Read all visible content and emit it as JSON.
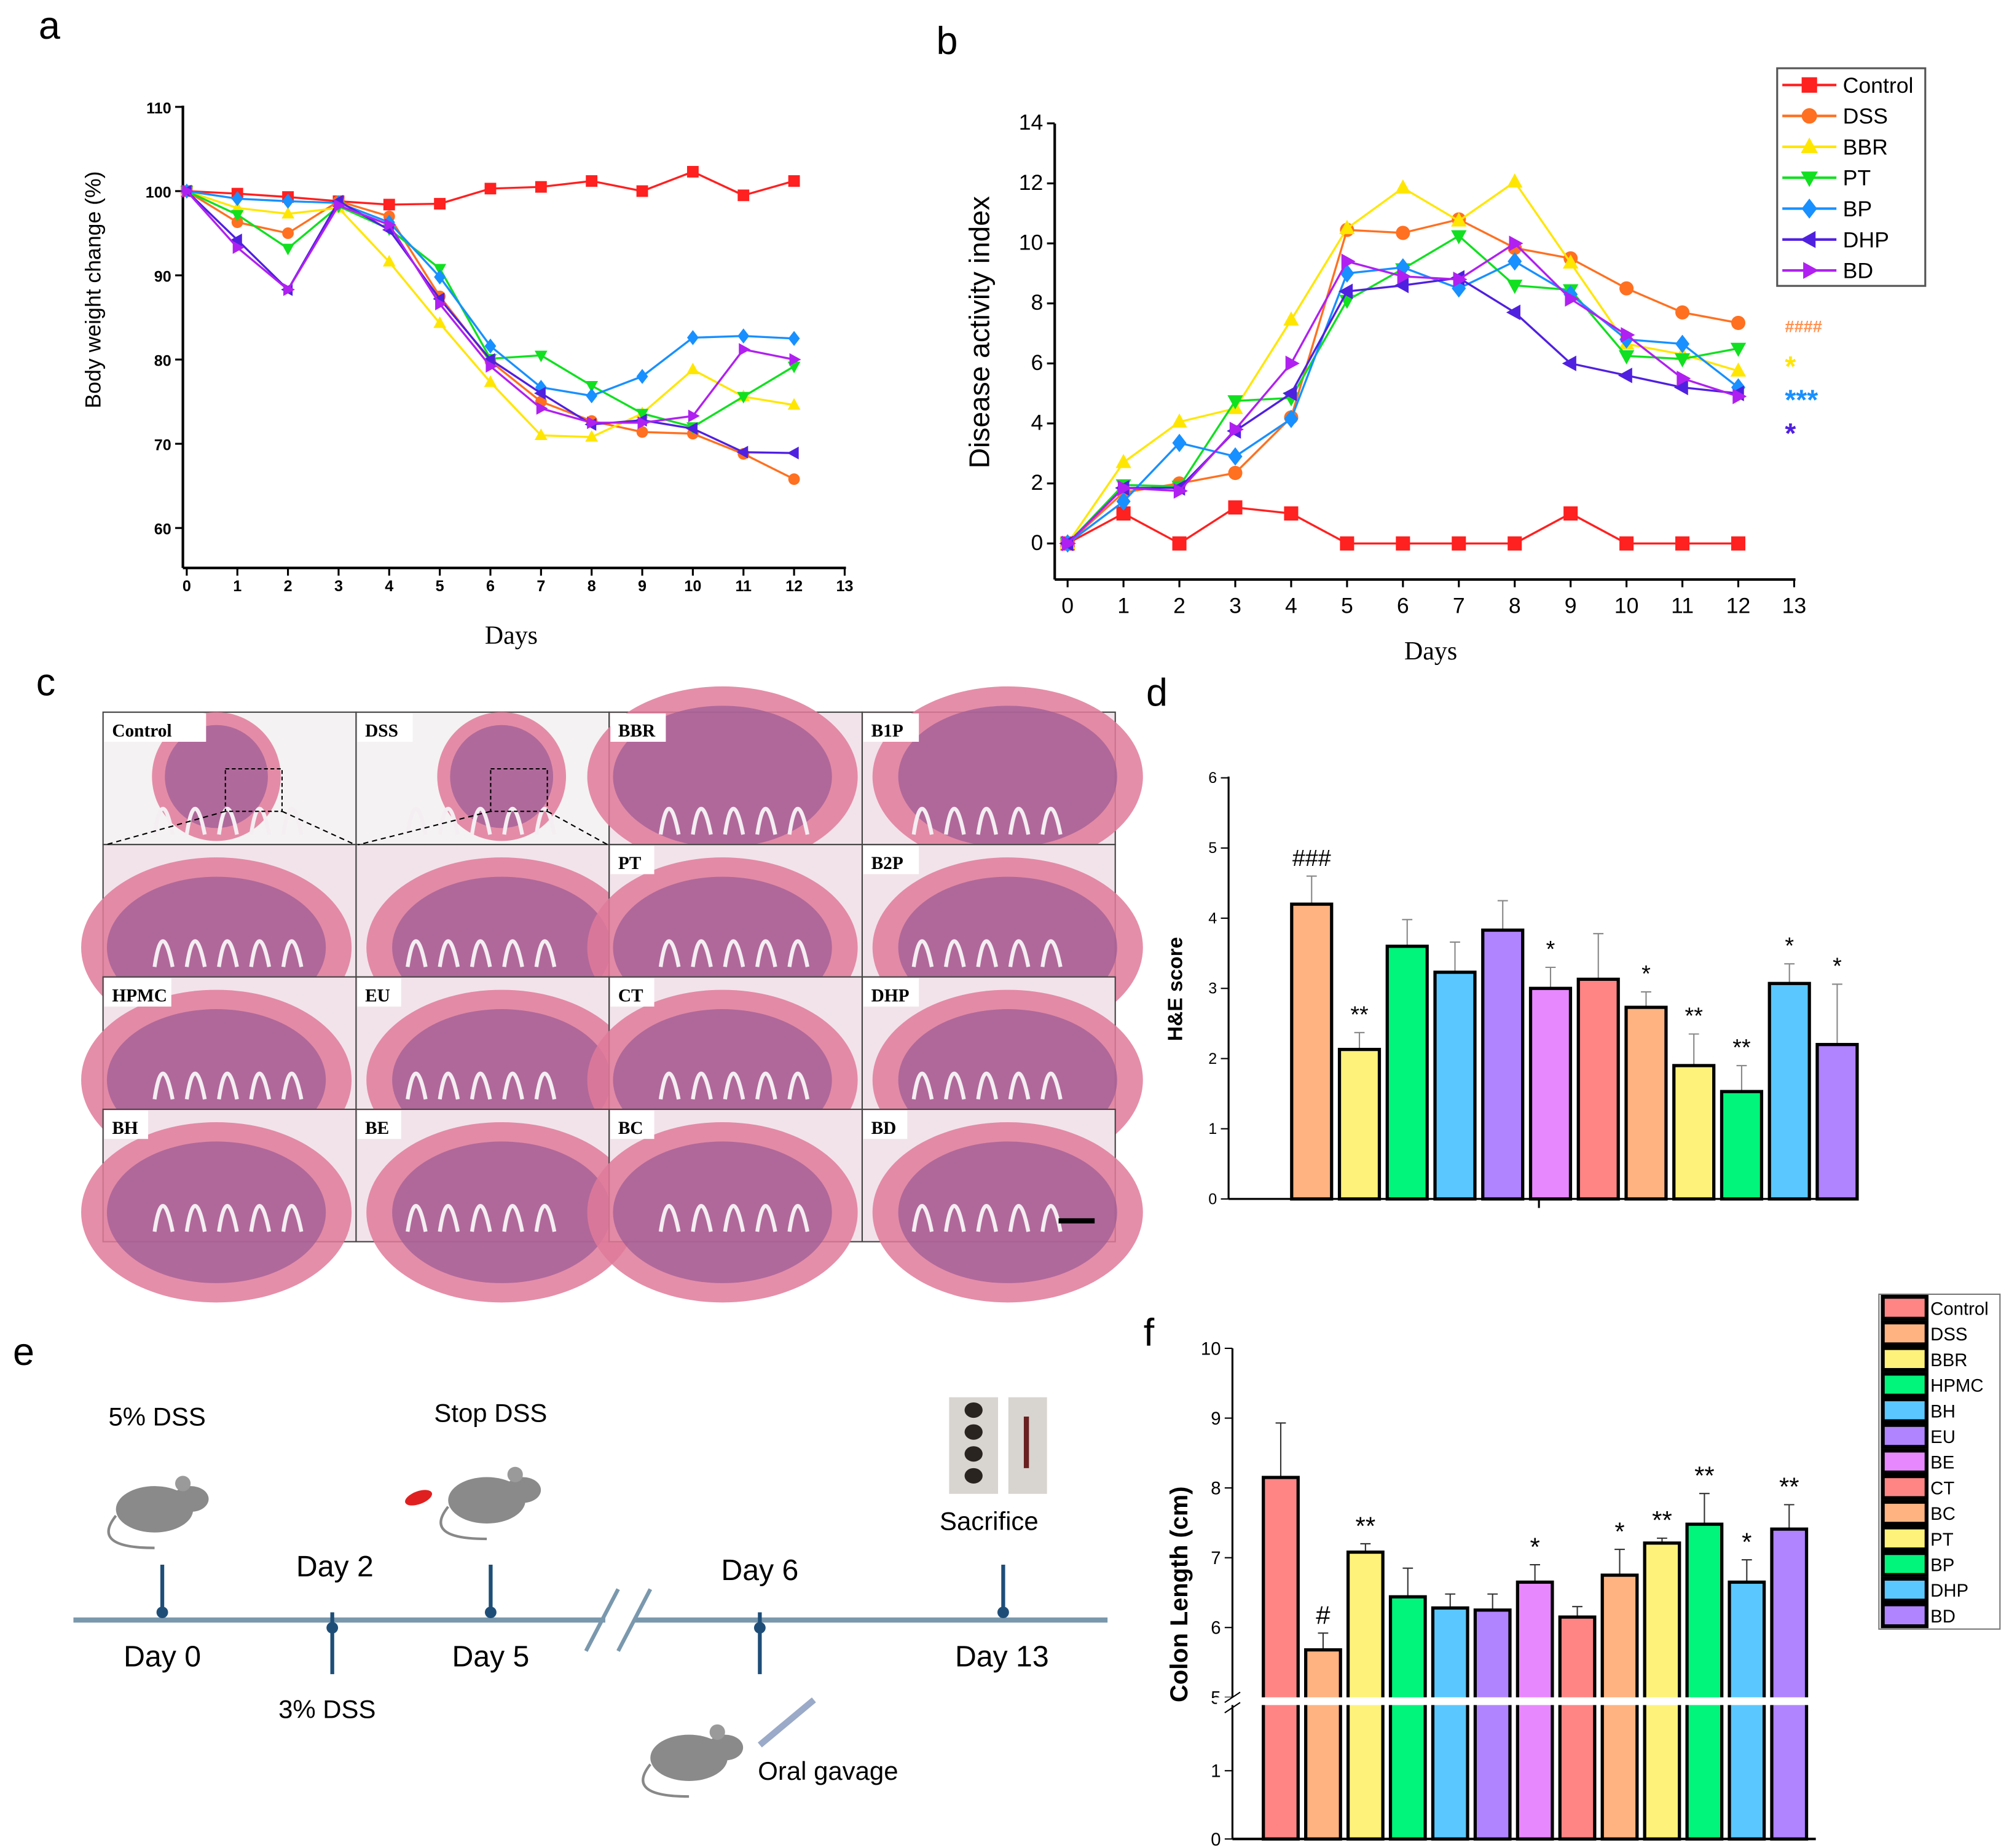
{
  "panel_labels": [
    "a",
    "b",
    "c",
    "d",
    "e",
    "f"
  ],
  "chart_data": [
    {
      "id": "a",
      "type": "line",
      "xlabel": "Days",
      "ylabel": "Body weight change  (%)",
      "xlim": [
        0,
        13
      ],
      "ylim": [
        55,
        110
      ],
      "xticks": [
        "0",
        "1",
        "2",
        "3",
        "4",
        "5",
        "6",
        "7",
        "8",
        "9",
        "10",
        "11",
        "12",
        "13"
      ],
      "yticks": [
        "60",
        "70",
        "80",
        "90",
        "100",
        "110"
      ],
      "x": [
        0,
        1,
        2,
        3,
        4,
        5,
        6,
        7,
        8,
        9,
        10,
        11,
        12
      ],
      "series": [
        {
          "name": "Control",
          "color": "#ff2020",
          "marker": "square",
          "values": [
            100,
            99.7,
            99.3,
            98.8,
            98.4,
            98.5,
            100.3,
            100.5,
            101.2,
            100,
            102.3,
            99.5,
            101.2
          ]
        },
        {
          "name": "DSS",
          "color": "#ff7020",
          "marker": "circle",
          "values": [
            100,
            96.3,
            95,
            98.8,
            97,
            87.5,
            79.8,
            75,
            72.7,
            71.4,
            71.2,
            68.8,
            65.8
          ]
        },
        {
          "name": "BBR",
          "color": "#ffe600",
          "marker": "triangle-up",
          "values": [
            100,
            98,
            97.3,
            98,
            91.6,
            84.3,
            77.3,
            71,
            70.8,
            73.6,
            78.8,
            75.6,
            74.6
          ]
        },
        {
          "name": "PT",
          "color": "#10e020",
          "marker": "triangle-down",
          "values": [
            100,
            97.2,
            93.2,
            98.2,
            95.5,
            90.8,
            80.1,
            80.5,
            76.9,
            73.6,
            72,
            75.6,
            79.2
          ]
        },
        {
          "name": "BP",
          "color": "#1890ff",
          "marker": "diamond",
          "values": [
            100,
            99.1,
            98.8,
            98.6,
            96.3,
            89.8,
            81.6,
            76.7,
            75.7,
            78,
            82.6,
            82.8,
            82.5
          ]
        },
        {
          "name": "DHP",
          "color": "#5020e0",
          "marker": "triangle-left",
          "values": [
            100,
            94.2,
            88.3,
            98.8,
            95.4,
            87.2,
            80,
            76,
            72.3,
            72.8,
            71.8,
            69,
            68.9
          ]
        },
        {
          "name": "BD",
          "color": "#b020f0",
          "marker": "triangle-right",
          "values": [
            100,
            93.3,
            88.3,
            98.3,
            96,
            86.6,
            79.2,
            74.2,
            72.5,
            72.5,
            73.3,
            81.2,
            80
          ]
        }
      ]
    },
    {
      "id": "b",
      "type": "line",
      "xlabel": "Days",
      "ylabel": "Disease activity index",
      "xlim": [
        0,
        13
      ],
      "ylim": [
        -1.2,
        14
      ],
      "xticks": [
        "0",
        "1",
        "2",
        "3",
        "4",
        "5",
        "6",
        "7",
        "8",
        "9",
        "10",
        "11",
        "12",
        "13"
      ],
      "yticks": [
        "0",
        "2",
        "4",
        "6",
        "8",
        "10",
        "12",
        "14"
      ],
      "legend": "top-right",
      "x": [
        0,
        1,
        2,
        3,
        4,
        5,
        6,
        7,
        8,
        9,
        10,
        11,
        12
      ],
      "series": [
        {
          "name": "Control",
          "color": "#ff2020",
          "marker": "square",
          "values": [
            0,
            1,
            0,
            1.2,
            1,
            0,
            0,
            0,
            0,
            1,
            0,
            0,
            0
          ]
        },
        {
          "name": "DSS",
          "color": "#ff7020",
          "marker": "circle",
          "values": [
            0,
            1.7,
            2,
            2.35,
            4.2,
            10.45,
            10.35,
            10.8,
            9.85,
            9.5,
            8.5,
            7.7,
            7.35
          ]
        },
        {
          "name": "BBR",
          "color": "#ffe600",
          "marker": "triangle-up",
          "values": [
            0,
            2.7,
            4.05,
            4.5,
            7.45,
            10.5,
            11.85,
            10.75,
            12.05,
            9.35,
            6.65,
            6.3,
            5.75
          ]
        },
        {
          "name": "PT",
          "color": "#10e020",
          "marker": "triangle-down",
          "values": [
            0,
            1.95,
            1.9,
            4.75,
            4.85,
            8.1,
            9.15,
            10.25,
            8.6,
            8.45,
            6.25,
            6.15,
            6.5
          ]
        },
        {
          "name": "BP",
          "color": "#1890ff",
          "marker": "diamond",
          "values": [
            0,
            1.4,
            3.35,
            2.9,
            4.15,
            9,
            9.2,
            8.5,
            9.4,
            8.3,
            6.8,
            6.65,
            5.2
          ]
        },
        {
          "name": "DHP",
          "color": "#5020e0",
          "marker": "triangle-left",
          "values": [
            0,
            1.85,
            1.85,
            3.75,
            5,
            8.4,
            8.6,
            8.85,
            7.7,
            6,
            5.6,
            5.2,
            5
          ]
        },
        {
          "name": "BD",
          "color": "#b020f0",
          "marker": "triangle-right",
          "values": [
            0,
            1.85,
            1.75,
            3.8,
            6,
            9.4,
            8.9,
            8.8,
            10,
            8.15,
            6.95,
            5.5,
            4.9
          ]
        }
      ],
      "annotations": [
        {
          "text": "####",
          "color": "#ff9050"
        },
        {
          "text": "*",
          "color": "#ffe600"
        },
        {
          "text": "***",
          "color": "#1890ff"
        },
        {
          "text": "*",
          "color": "#5020e0"
        }
      ]
    },
    {
      "id": "d",
      "type": "bar",
      "ylabel": "H&E score",
      "ylim": [
        0,
        6
      ],
      "yticks": [
        "0",
        "1",
        "2",
        "3",
        "4",
        "5",
        "6"
      ],
      "values": [
        4.2,
        2.13,
        3.6,
        3.23,
        3.83,
        3.0,
        3.13,
        2.73,
        1.9,
        1.53,
        3.07,
        2.2
      ],
      "errors": [
        0.4,
        0.24,
        0.38,
        0.43,
        0.42,
        0.3,
        0.65,
        0.22,
        0.45,
        0.37,
        0.28,
        0.86
      ],
      "colors": [
        "#ffb380",
        "#fff27a",
        "#00f57a",
        "#5ac8ff",
        "#b084ff",
        "#e888ff",
        "#ff8585",
        "#ffb380",
        "#fff27a",
        "#00f57a",
        "#5ac8ff",
        "#b084ff"
      ],
      "annotations": [
        "###",
        "**",
        "",
        "",
        "",
        "*",
        "",
        "*",
        "**",
        "**",
        "*",
        "*"
      ]
    },
    {
      "id": "f",
      "type": "bar",
      "ylabel": "Colon Length (cm)",
      "ylim": [
        0,
        10
      ],
      "axis_break": [
        2,
        5
      ],
      "yticks": [
        "0",
        "1",
        "5",
        "6",
        "7",
        "8",
        "9",
        "10"
      ],
      "categories": [
        "Control",
        "DSS",
        "BBR",
        "HPMC",
        "BH",
        "EU",
        "BE",
        "CT",
        "BC",
        "PT",
        "BP",
        "DHP",
        "BD"
      ],
      "values": [
        8.15,
        5.68,
        7.08,
        6.44,
        6.28,
        6.25,
        6.65,
        6.15,
        6.75,
        7.21,
        7.48,
        6.65,
        7.41
      ],
      "errors": [
        0.78,
        0.24,
        0.12,
        0.41,
        0.2,
        0.23,
        0.25,
        0.15,
        0.37,
        0.07,
        0.44,
        0.32,
        0.35
      ],
      "colors": [
        "#ff8585",
        "#ffb380",
        "#fff27a",
        "#00f57a",
        "#5ac8ff",
        "#b084ff",
        "#e888ff",
        "#ff8585",
        "#ffb380",
        "#fff27a",
        "#00f57a",
        "#5ac8ff",
        "#b084ff"
      ],
      "annotations": [
        "",
        "#",
        "**",
        "",
        "",
        "",
        "*",
        "",
        "*",
        "**",
        "**",
        "*",
        "**"
      ],
      "legend": "top-right"
    }
  ],
  "histology": {
    "labels": [
      "Control",
      "DSS",
      "BBR",
      "B1P",
      "",
      "",
      "PT",
      "B2P",
      "HPMC",
      "EU",
      "CT",
      "DHP",
      "BH",
      "BE",
      "BC",
      "BD"
    ]
  },
  "timeline": {
    "top_labels": [
      "5% DSS",
      "Stop DSS",
      "Sacrifice"
    ],
    "mid_labels": [
      "Day 2",
      "Day 6"
    ],
    "bottom_labels": [
      "Day 0",
      "Day 5",
      "Day 13"
    ],
    "low_labels": [
      "3% DSS",
      "Oral gavage"
    ]
  }
}
